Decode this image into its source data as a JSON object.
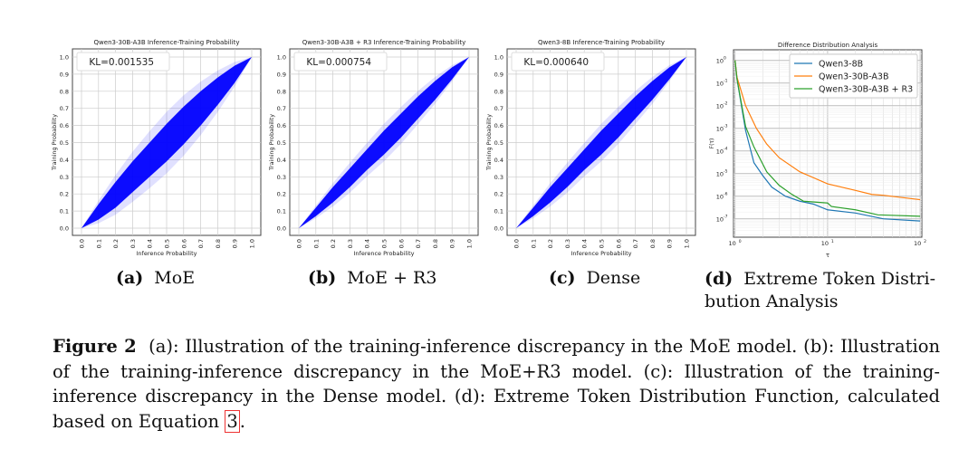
{
  "chart_data": [
    {
      "type": "scatter",
      "title": "Qwen3-30B-A3B Inference-Training Probability",
      "xlabel": "Inference Probability",
      "ylabel": "Training Probability",
      "annotation": "KL=0.001535",
      "xlim": [
        0,
        1
      ],
      "ylim": [
        0,
        1
      ],
      "ticks": [
        "0.0",
        "0.1",
        "0.2",
        "0.3",
        "0.4",
        "0.5",
        "0.6",
        "0.7",
        "0.8",
        "0.9",
        "1.0"
      ],
      "grid": true,
      "color": "#0000ff",
      "band": {
        "x": [
          0,
          0.1,
          0.2,
          0.3,
          0.4,
          0.5,
          0.6,
          0.7,
          0.8,
          0.9,
          1.0
        ],
        "lower": [
          0,
          0.05,
          0.12,
          0.21,
          0.3,
          0.39,
          0.49,
          0.6,
          0.72,
          0.85,
          1.0
        ],
        "upper": [
          0,
          0.14,
          0.27,
          0.39,
          0.5,
          0.61,
          0.71,
          0.8,
          0.88,
          0.95,
          1.0
        ]
      }
    },
    {
      "type": "scatter",
      "title": "Qwen3-30B-A3B + R3 Inference-Training Probability",
      "xlabel": "Inference Probability",
      "ylabel": "Training Probability",
      "annotation": "KL=0.000754",
      "xlim": [
        0,
        1
      ],
      "ylim": [
        0,
        1
      ],
      "ticks": [
        "0.0",
        "0.1",
        "0.2",
        "0.3",
        "0.4",
        "0.5",
        "0.6",
        "0.7",
        "0.8",
        "0.9",
        "1.0"
      ],
      "grid": true,
      "color": "#0000ff",
      "band": {
        "x": [
          0,
          0.1,
          0.2,
          0.3,
          0.4,
          0.5,
          0.6,
          0.7,
          0.8,
          0.9,
          1.0
        ],
        "lower": [
          0,
          0.07,
          0.15,
          0.24,
          0.34,
          0.43,
          0.53,
          0.64,
          0.75,
          0.87,
          1.0
        ],
        "upper": [
          0,
          0.12,
          0.24,
          0.35,
          0.46,
          0.57,
          0.67,
          0.77,
          0.86,
          0.94,
          1.0
        ]
      }
    },
    {
      "type": "scatter",
      "title": "Qwen3-8B Inference-Training Probability",
      "xlabel": "Inference Probability",
      "ylabel": "Training Probability",
      "annotation": "KL=0.000640",
      "xlim": [
        0,
        1
      ],
      "ylim": [
        0,
        1
      ],
      "ticks": [
        "0.0",
        "0.1",
        "0.2",
        "0.3",
        "0.4",
        "0.5",
        "0.6",
        "0.7",
        "0.8",
        "0.9",
        "1.0"
      ],
      "grid": true,
      "color": "#0000ff",
      "band": {
        "x": [
          0,
          0.1,
          0.2,
          0.3,
          0.4,
          0.5,
          0.6,
          0.7,
          0.8,
          0.9,
          1.0
        ],
        "lower": [
          0,
          0.07,
          0.15,
          0.24,
          0.34,
          0.43,
          0.53,
          0.64,
          0.75,
          0.87,
          1.0
        ],
        "upper": [
          0,
          0.12,
          0.24,
          0.35,
          0.46,
          0.57,
          0.67,
          0.77,
          0.86,
          0.94,
          1.0
        ]
      }
    },
    {
      "type": "line",
      "title": "Difference Distribution Analysis",
      "xlabel": "τ",
      "ylabel": "F(τ)",
      "xscale": "log",
      "yscale": "log",
      "xlim": [
        1,
        105
      ],
      "ylim": [
        1.6e-08,
        3
      ],
      "grid": true,
      "legend": "top-right",
      "xticks": [
        "10^0",
        "10^1",
        "10^2"
      ],
      "yticks": [
        "10^0",
        "10^-1",
        "10^-2",
        "10^-3",
        "10^-4",
        "10^-5",
        "10^-6",
        "10^-7"
      ],
      "series": [
        {
          "name": "Qwen3-8B",
          "color": "#1f77b4",
          "x": [
            1,
            1.05,
            1.3,
            1.6,
            2,
            2.5,
            3.5,
            5,
            7,
            10,
            20,
            40,
            100
          ],
          "y": [
            1,
            0.15,
            0.0008,
            3e-05,
            8e-06,
            2.5e-06,
            1e-06,
            6e-07,
            4.5e-07,
            2.5e-07,
            1.8e-07,
            1e-07,
            8e-08
          ]
        },
        {
          "name": "Qwen3-30B-A3B",
          "color": "#ff7f0e",
          "x": [
            1,
            1.05,
            1.3,
            1.7,
            2.2,
            3,
            5,
            10,
            20,
            30,
            40,
            100
          ],
          "y": [
            1,
            0.18,
            0.01,
            0.001,
            0.0002,
            5e-05,
            1.2e-05,
            3.5e-06,
            1.8e-06,
            1.2e-06,
            1.1e-06,
            7e-07
          ]
        },
        {
          "name": "Qwen3-30B-A3B + R3",
          "color": "#2ca02c",
          "x": [
            1,
            1.05,
            1.3,
            1.6,
            2.2,
            3,
            4,
            5.5,
            10,
            11,
            20,
            35,
            100
          ],
          "y": [
            1,
            0.15,
            0.0012,
            0.00015,
            1.2e-05,
            3e-06,
            1.3e-06,
            6e-07,
            5e-07,
            3.5e-07,
            2.5e-07,
            1.5e-07,
            1.3e-07
          ]
        }
      ]
    }
  ],
  "subcaptions": [
    {
      "label": "(a)",
      "text": "MoE"
    },
    {
      "label": "(b)",
      "text": "MoE + R3"
    },
    {
      "label": "(c)",
      "text": "Dense"
    },
    {
      "label": "(d)",
      "text": "Extreme Token Distri-",
      "text2": "bution Analysis"
    }
  ],
  "caption": {
    "label": "Figure 2",
    "text": "(a): Illustration of the training-inference discrepancy in the MoE model. (b): Illustration of the training-inference discrepancy in the MoE+R3 model. (c): Illustration of the training-inference discrepancy in the Dense model. (d): Extreme Token Distribution Function, calculated based on Equation",
    "ref": "3",
    "end": "."
  }
}
